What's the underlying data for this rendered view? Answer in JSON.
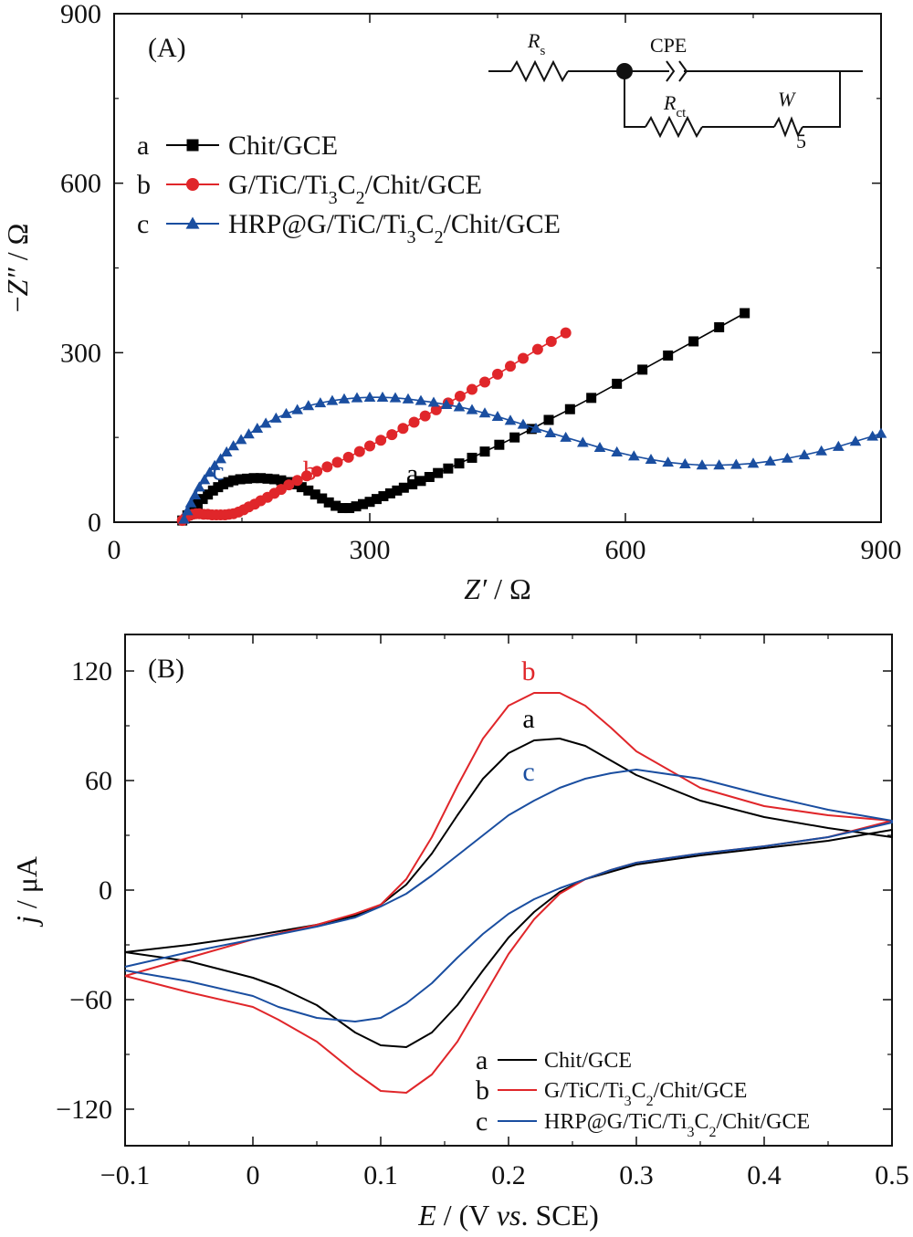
{
  "chart_data": [
    {
      "panel_label": "(A)",
      "type": "scatter",
      "xlabel_html": "<tspan font-style='italic'>Z′</tspan> / Ω",
      "ylabel_html": "−<tspan font-style='italic'>Z″</tspan> / Ω",
      "xlim": [
        0,
        900
      ],
      "ylim": [
        0,
        900
      ],
      "xticks": [
        "0",
        "300",
        "600",
        "900"
      ],
      "yticks": [
        "0",
        "300",
        "600",
        "900"
      ],
      "xtick_values": [
        0,
        300,
        600,
        900
      ],
      "ytick_values": [
        0,
        300,
        600,
        900
      ],
      "series": [
        {
          "name": "Chit/GCE",
          "letter": "a",
          "color": "#000000",
          "marker": "square",
          "x": [
            80,
            86,
            92,
            98,
            104,
            110,
            116,
            122,
            128,
            134,
            140,
            148,
            156,
            164,
            172,
            180,
            188,
            196,
            204,
            212,
            220,
            228,
            236,
            244,
            252,
            260,
            268,
            276,
            284,
            292,
            300,
            308,
            316,
            324,
            332,
            340,
            350,
            360,
            370,
            380,
            392,
            405,
            420,
            435,
            452,
            470,
            490,
            510,
            535,
            560,
            590,
            620,
            650,
            680,
            710,
            740
          ],
          "y": [
            3,
            12,
            22,
            32,
            41,
            49,
            56,
            62,
            67,
            71,
            74,
            76,
            77,
            78,
            78,
            77,
            76,
            74,
            71,
            67,
            62,
            56,
            49,
            42,
            35,
            29,
            25,
            25,
            28,
            32,
            36,
            41,
            46,
            51,
            56,
            61,
            67,
            73,
            80,
            87,
            95,
            104,
            114,
            125,
            137,
            150,
            165,
            181,
            200,
            220,
            245,
            270,
            295,
            320,
            345,
            370
          ]
        },
        {
          "name": "G/TiC/Ti₃C₂/Chit/GCE",
          "letter": "b",
          "color": "#e0262a",
          "marker": "circle",
          "x": [
            80,
            84,
            88,
            92,
            96,
            100,
            105,
            110,
            115,
            120,
            125,
            130,
            135,
            140,
            146,
            152,
            158,
            165,
            172,
            180,
            188,
            196,
            205,
            215,
            226,
            238,
            250,
            262,
            275,
            288,
            300,
            313,
            326,
            339,
            352,
            365,
            378,
            392,
            406,
            420,
            435,
            450,
            465,
            480,
            497,
            513,
            530
          ],
          "y": [
            3,
            8,
            12,
            14,
            15,
            15,
            14,
            14,
            13,
            13,
            13,
            13,
            14,
            15,
            18,
            22,
            27,
            32,
            38,
            44,
            51,
            58,
            66,
            74,
            82,
            90,
            98,
            106,
            115,
            125,
            135,
            145,
            155,
            166,
            177,
            188,
            199,
            211,
            223,
            235,
            248,
            262,
            276,
            290,
            306,
            320,
            335
          ]
        },
        {
          "name": "HRP@G/TiC/Ti₃C₂/Chit/GCE",
          "letter": "c",
          "color": "#1a4ea0",
          "marker": "triangle",
          "x": [
            82,
            86,
            90,
            95,
            100,
            106,
            112,
            118,
            125,
            132,
            140,
            149,
            158,
            168,
            178,
            190,
            202,
            215,
            228,
            242,
            256,
            270,
            285,
            300,
            315,
            330,
            345,
            360,
            375,
            390,
            405,
            420,
            435,
            450,
            465,
            480,
            495,
            512,
            530,
            550,
            570,
            590,
            610,
            630,
            650,
            670,
            690,
            710,
            730,
            750,
            770,
            790,
            810,
            830,
            850,
            870,
            890,
            900
          ],
          "y": [
            5,
            20,
            34,
            48,
            62,
            75,
            88,
            100,
            112,
            124,
            135,
            146,
            156,
            166,
            175,
            184,
            192,
            199,
            206,
            211,
            215,
            218,
            220,
            221,
            221,
            220,
            218,
            215,
            212,
            208,
            204,
            199,
            193,
            187,
            180,
            173,
            166,
            158,
            150,
            141,
            132,
            124,
            117,
            111,
            106,
            103,
            101,
            101,
            102,
            104,
            108,
            113,
            119,
            126,
            134,
            143,
            152,
            157
          ]
        }
      ],
      "series_labels_html": [
        "Chit/GCE",
        "G/TiC/Ti<tspan baseline-shift='sub' font-size='20'>3</tspan>C<tspan baseline-shift='sub' font-size='20'>2</tspan>/Chit/GCE",
        "HRP@G/TiC/Ti<tspan baseline-shift='sub' font-size='20'>3</tspan>C<tspan baseline-shift='sub' font-size='20'>2</tspan>/Chit/GCE"
      ],
      "curve_labels": [
        {
          "text": "a",
          "x": 350,
          "y": 70
        },
        {
          "text": "b",
          "x": 230,
          "y": 75
        },
        {
          "text": "c",
          "x": 122,
          "y": 75
        }
      ],
      "circuit": {
        "rs_html": "<tspan font-style='italic'>R</tspan><tspan baseline-shift='sub' font-size='15'>s</tspan>",
        "cpe": "CPE",
        "rct_html": "<tspan font-style='italic'>R</tspan><tspan baseline-shift='sub' font-size='15'>ct</tspan>",
        "w_html": "<tspan font-style='italic'>W</tspan>",
        "w_sub": "5"
      }
    },
    {
      "panel_label": "(B)",
      "type": "line",
      "xlabel_html": "<tspan font-style='italic'>E</tspan> / (V <tspan font-style='italic'>vs</tspan>. SCE)",
      "ylabel_html": "<tspan font-style='italic'>j</tspan> / μA",
      "xlim": [
        -0.1,
        0.5
      ],
      "ylim": [
        -140,
        140
      ],
      "xticks": [
        "−0.1",
        "0",
        "0.1",
        "0.2",
        "0.3",
        "0.4",
        "0.5"
      ],
      "yticks": [
        "−120",
        "−60",
        "0",
        "60",
        "120"
      ],
      "xtick_values": [
        -0.1,
        0,
        0.1,
        0.2,
        0.3,
        0.4,
        0.5
      ],
      "ytick_values": [
        -120,
        -60,
        0,
        60,
        120
      ],
      "series": [
        {
          "name": "Chit/GCE",
          "letter": "a",
          "color": "#000000",
          "forward": {
            "x": [
              -0.1,
              -0.05,
              0,
              0.05,
              0.08,
              0.1,
              0.12,
              0.14,
              0.16,
              0.18,
              0.2,
              0.22,
              0.24,
              0.26,
              0.28,
              0.3,
              0.35,
              0.4,
              0.45,
              0.5
            ],
            "y": [
              -34,
              -30,
              -25,
              -19,
              -14,
              -8,
              3,
              20,
              41,
              61,
              75,
              82,
              83,
              79,
              71,
              63,
              49,
              40,
              34,
              29
            ]
          },
          "reverse": {
            "x": [
              0.5,
              0.45,
              0.4,
              0.35,
              0.3,
              0.28,
              0.26,
              0.24,
              0.22,
              0.2,
              0.18,
              0.16,
              0.14,
              0.12,
              0.1,
              0.08,
              0.05,
              0.02,
              0,
              -0.05,
              -0.1
            ],
            "y": [
              33,
              27,
              23,
              19,
              14,
              10,
              6,
              -1,
              -12,
              -26,
              -44,
              -63,
              -78,
              -86,
              -85,
              -78,
              -63,
              -53,
              -48,
              -39,
              -34
            ]
          }
        },
        {
          "name": "G/TiC/Ti₃C₂/Chit/GCE",
          "letter": "b",
          "color": "#e0262a",
          "forward": {
            "x": [
              -0.1,
              -0.05,
              0,
              0.05,
              0.08,
              0.1,
              0.12,
              0.14,
              0.16,
              0.18,
              0.2,
              0.22,
              0.24,
              0.26,
              0.28,
              0.3,
              0.35,
              0.4,
              0.45,
              0.5
            ],
            "y": [
              -47,
              -37,
              -27,
              -19,
              -13,
              -8,
              6,
              29,
              57,
              83,
              101,
              108,
              108,
              101,
              89,
              76,
              56,
              46,
              41,
              38
            ]
          },
          "reverse": {
            "x": [
              0.5,
              0.45,
              0.4,
              0.35,
              0.3,
              0.28,
              0.26,
              0.24,
              0.22,
              0.2,
              0.18,
              0.16,
              0.14,
              0.12,
              0.1,
              0.08,
              0.05,
              0.02,
              0,
              -0.05,
              -0.1
            ],
            "y": [
              38,
              29,
              24,
              20,
              15,
              11,
              6,
              -2,
              -16,
              -35,
              -59,
              -83,
              -101,
              -111,
              -110,
              -100,
              -83,
              -71,
              -64,
              -56,
              -47
            ]
          }
        },
        {
          "name": "HRP@G/TiC/Ti₃C₂/Chit/GCE",
          "letter": "c",
          "color": "#1a4ea0",
          "forward": {
            "x": [
              -0.1,
              -0.05,
              0,
              0.05,
              0.08,
              0.1,
              0.12,
              0.14,
              0.16,
              0.18,
              0.2,
              0.22,
              0.24,
              0.26,
              0.28,
              0.3,
              0.35,
              0.4,
              0.45,
              0.5
            ],
            "y": [
              -42,
              -34,
              -27,
              -20,
              -15,
              -9,
              -2,
              8,
              19,
              30,
              41,
              49,
              56,
              61,
              64,
              66,
              61,
              52,
              44,
              38
            ]
          },
          "reverse": {
            "x": [
              0.5,
              0.45,
              0.4,
              0.35,
              0.3,
              0.28,
              0.26,
              0.24,
              0.22,
              0.2,
              0.18,
              0.16,
              0.14,
              0.12,
              0.1,
              0.08,
              0.05,
              0.02,
              0,
              -0.05,
              -0.1
            ],
            "y": [
              37,
              29,
              24,
              20,
              15,
              11,
              6,
              1,
              -5,
              -13,
              -24,
              -37,
              -51,
              -62,
              -70,
              -72,
              -70,
              -64,
              -58,
              -50,
              -44
            ]
          }
        }
      ],
      "series_labels_html": [
        "Chit/GCE",
        "G/TiC/Ti<tspan baseline-shift='sub' font-size='16'>3</tspan>C<tspan baseline-shift='sub' font-size='16'>2</tspan>/Chit/GCE",
        "HRP@G/TiC/Ti<tspan baseline-shift='sub' font-size='16'>3</tspan>C<tspan baseline-shift='sub' font-size='16'>2</tspan>/Chit/GCE"
      ],
      "curve_labels": [
        {
          "text": "b",
          "x": 0.235,
          "y": 115
        },
        {
          "text": "a",
          "x": 0.235,
          "y": 89
        },
        {
          "text": "c",
          "x": 0.235,
          "y": 60
        }
      ]
    }
  ]
}
